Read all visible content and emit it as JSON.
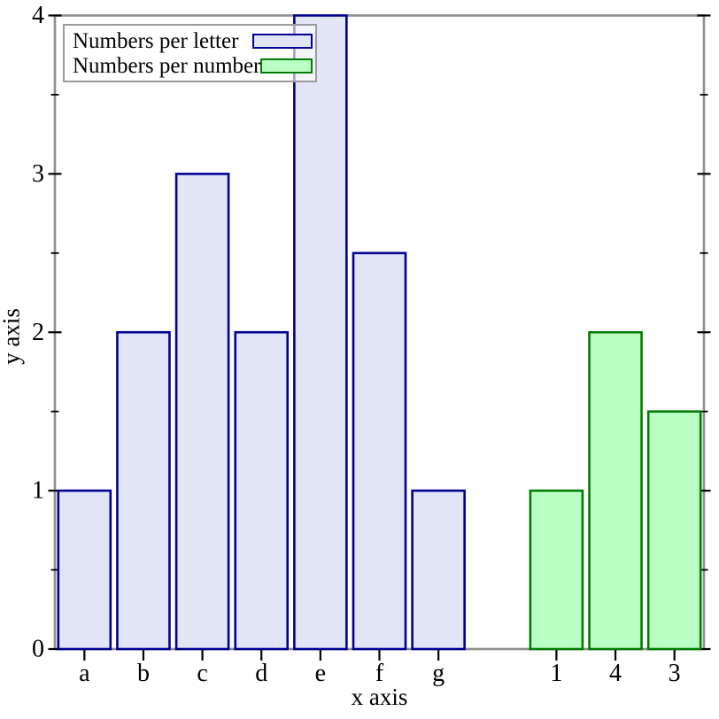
{
  "chart_data": {
    "type": "bar",
    "title": "",
    "xlabel": "x axis",
    "ylabel": "y axis",
    "ylim": [
      0,
      4
    ],
    "y_major_ticks": [
      0,
      1,
      2,
      3,
      4
    ],
    "y_minor_ticks": [
      0.5,
      1.5,
      2.5,
      3.5
    ],
    "slot_count": 11,
    "grid": "off",
    "legend": {
      "position": "top-left",
      "entries": [
        "Numbers per letter",
        "Numbers per number"
      ]
    },
    "series": [
      {
        "name": "Numbers per letter",
        "fill": "#E2E5F8",
        "stroke": "#000090",
        "categories": [
          "a",
          "b",
          "c",
          "d",
          "e",
          "f",
          "g"
        ],
        "values": [
          1,
          2,
          3,
          2,
          4,
          2.5,
          1
        ],
        "slots": [
          0,
          1,
          2,
          3,
          4,
          5,
          6
        ]
      },
      {
        "name": "Numbers per number",
        "fill": "#BAFFC3",
        "stroke": "#007D00",
        "categories": [
          "1",
          "4",
          "3"
        ],
        "values": [
          1,
          2,
          1.5
        ],
        "slots": [
          8,
          9,
          10
        ]
      }
    ],
    "colors": {
      "frame": "#8E8E8E",
      "tick": "#000000",
      "legend_border": "#9A9A9A",
      "background": "#FFFFFF"
    }
  }
}
